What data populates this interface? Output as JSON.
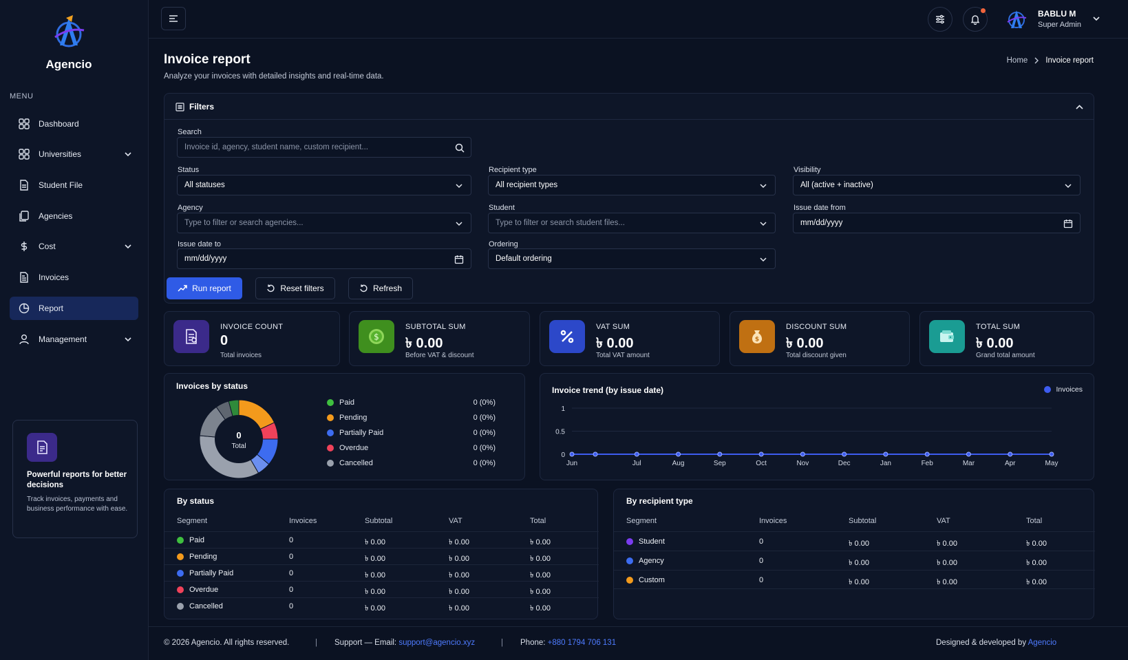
{
  "brand": {
    "name": "Agencio"
  },
  "sidebar": {
    "menu_label": "MENU",
    "items": [
      {
        "label": "Dashboard",
        "icon": "dashboard-icon",
        "has_chevron": false
      },
      {
        "label": "Universities",
        "icon": "grid-icon",
        "has_chevron": true
      },
      {
        "label": "Student File",
        "icon": "file-icon",
        "has_chevron": false
      },
      {
        "label": "Agencies",
        "icon": "copy-icon",
        "has_chevron": false
      },
      {
        "label": "Cost",
        "icon": "dollar-icon",
        "has_chevron": true
      },
      {
        "label": "Invoices",
        "icon": "invoice-icon",
        "has_chevron": false
      },
      {
        "label": "Report",
        "icon": "pie-chart-icon",
        "has_chevron": false,
        "active": true
      },
      {
        "label": "Management",
        "icon": "user-icon",
        "has_chevron": true
      }
    ],
    "promo": {
      "title": "Powerful reports for better decisions",
      "text": "Track invoices, payments and business performance with ease."
    }
  },
  "topbar": {
    "user_name": "BABLU M",
    "user_role": "Super Admin"
  },
  "header": {
    "title": "Invoice report",
    "subtitle": "Analyze your invoices with detailed insights and real-time data.",
    "breadcrumb": [
      "Home",
      "Invoice report"
    ]
  },
  "filters": {
    "title": "Filters",
    "search": {
      "label": "Search",
      "placeholder": "Invoice id, agency, student name, custom recipient..."
    },
    "status": {
      "label": "Status",
      "value": "All statuses"
    },
    "recipient_type": {
      "label": "Recipient type",
      "value": "All recipient types"
    },
    "visibility": {
      "label": "Visibility",
      "value": "All (active + inactive)"
    },
    "agency": {
      "label": "Agency",
      "placeholder": "Type to filter or search agencies..."
    },
    "student": {
      "label": "Student",
      "placeholder": "Type to filter or search student files..."
    },
    "issue_from": {
      "label": "Issue date from",
      "value": "mm/dd/yyyy"
    },
    "issue_to": {
      "label": "Issue date to",
      "value": "mm/dd/yyyy"
    },
    "ordering": {
      "label": "Ordering",
      "value": "Default ordering"
    },
    "buttons": {
      "run": "Run report",
      "reset": "Reset filters",
      "refresh": "Refresh"
    }
  },
  "kpis": [
    {
      "label": "INVOICE COUNT",
      "value": "0",
      "sub": "Total invoices",
      "color": "#3b2a8a",
      "icon": "invoice-icon"
    },
    {
      "label": "SUBTOTAL SUM",
      "value": "৳ 0.00",
      "sub": "Before VAT & discount",
      "color": "#3f8f1e",
      "icon": "coin-icon"
    },
    {
      "label": "VAT SUM",
      "value": "৳ 0.00",
      "sub": "Total VAT amount",
      "color": "#2c48c9",
      "icon": "percent-icon"
    },
    {
      "label": "DISCOUNT SUM",
      "value": "৳ 0.00",
      "sub": "Total discount given",
      "color": "#c07012",
      "icon": "money-bag-icon"
    },
    {
      "label": "TOTAL SUM",
      "value": "৳ 0.00",
      "sub": "Grand total amount",
      "color": "#1a9c93",
      "icon": "wallet-icon"
    }
  ],
  "status_chart": {
    "title": "Invoices by status",
    "center_value": "0",
    "center_label": "Total",
    "legend": [
      {
        "label": "Paid",
        "value": "0 (0%)",
        "color": "#3fbf3f"
      },
      {
        "label": "Pending",
        "value": "0 (0%)",
        "color": "#f39a1c"
      },
      {
        "label": "Partially Paid",
        "value": "0 (0%)",
        "color": "#3d6cf0"
      },
      {
        "label": "Overdue",
        "value": "0 (0%)",
        "color": "#f0425a"
      },
      {
        "label": "Cancelled",
        "value": "0 (0%)",
        "color": "#9aa1ad"
      }
    ]
  },
  "chart_data": {
    "type": "line",
    "title": "Invoice trend (by issue date)",
    "categories": [
      "Jun",
      "",
      "Jul",
      "Aug",
      "Sep",
      "Oct",
      "Nov",
      "Dec",
      "Jan",
      "Feb",
      "Mar",
      "Apr",
      "May"
    ],
    "series": [
      {
        "name": "Invoices",
        "values": [
          0,
          0,
          0,
          0,
          0,
          0,
          0,
          0,
          0,
          0,
          0,
          0,
          0
        ],
        "color": "#3d5cf0"
      }
    ],
    "y_ticks": [
      "1",
      "0.5",
      "0"
    ],
    "ylim": [
      0,
      1
    ],
    "legend_position": "top-right"
  },
  "by_status": {
    "title": "By status",
    "headers": [
      "Segment",
      "Invoices",
      "Subtotal",
      "VAT",
      "Total"
    ],
    "rows": [
      {
        "segment": "Paid",
        "color": "#3fbf3f",
        "invoices": "0",
        "subtotal": "৳ 0.00",
        "vat": "৳ 0.00",
        "total": "৳ 0.00"
      },
      {
        "segment": "Pending",
        "color": "#f39a1c",
        "invoices": "0",
        "subtotal": "৳ 0.00",
        "vat": "৳ 0.00",
        "total": "৳ 0.00"
      },
      {
        "segment": "Partially Paid",
        "color": "#3d6cf0",
        "invoices": "0",
        "subtotal": "৳ 0.00",
        "vat": "৳ 0.00",
        "total": "৳ 0.00"
      },
      {
        "segment": "Overdue",
        "color": "#f0425a",
        "invoices": "0",
        "subtotal": "৳ 0.00",
        "vat": "৳ 0.00",
        "total": "৳ 0.00"
      },
      {
        "segment": "Cancelled",
        "color": "#9aa1ad",
        "invoices": "0",
        "subtotal": "৳ 0.00",
        "vat": "৳ 0.00",
        "total": "৳ 0.00"
      }
    ]
  },
  "by_recipient": {
    "title": "By recipient type",
    "headers": [
      "Segment",
      "Invoices",
      "Subtotal",
      "VAT",
      "Total"
    ],
    "rows": [
      {
        "segment": "Student",
        "color": "#7a3cf0",
        "invoices": "0",
        "subtotal": "৳ 0.00",
        "vat": "৳ 0.00",
        "total": "৳ 0.00"
      },
      {
        "segment": "Agency",
        "color": "#3d6cf0",
        "invoices": "0",
        "subtotal": "৳ 0.00",
        "vat": "৳ 0.00",
        "total": "৳ 0.00"
      },
      {
        "segment": "Custom",
        "color": "#f39a1c",
        "invoices": "0",
        "subtotal": "৳ 0.00",
        "vat": "৳ 0.00",
        "total": "৳ 0.00"
      }
    ]
  },
  "footer": {
    "copyright": "© 2026 Agencio. All rights reserved.",
    "sep": "|",
    "support_label": "Support — Email:",
    "support_email": "support@agencio.xyz",
    "phone_label": "Phone:",
    "phone": "+880 1794 706 131",
    "credit_label": "Designed & developed by",
    "credit_name": "Agencio"
  }
}
